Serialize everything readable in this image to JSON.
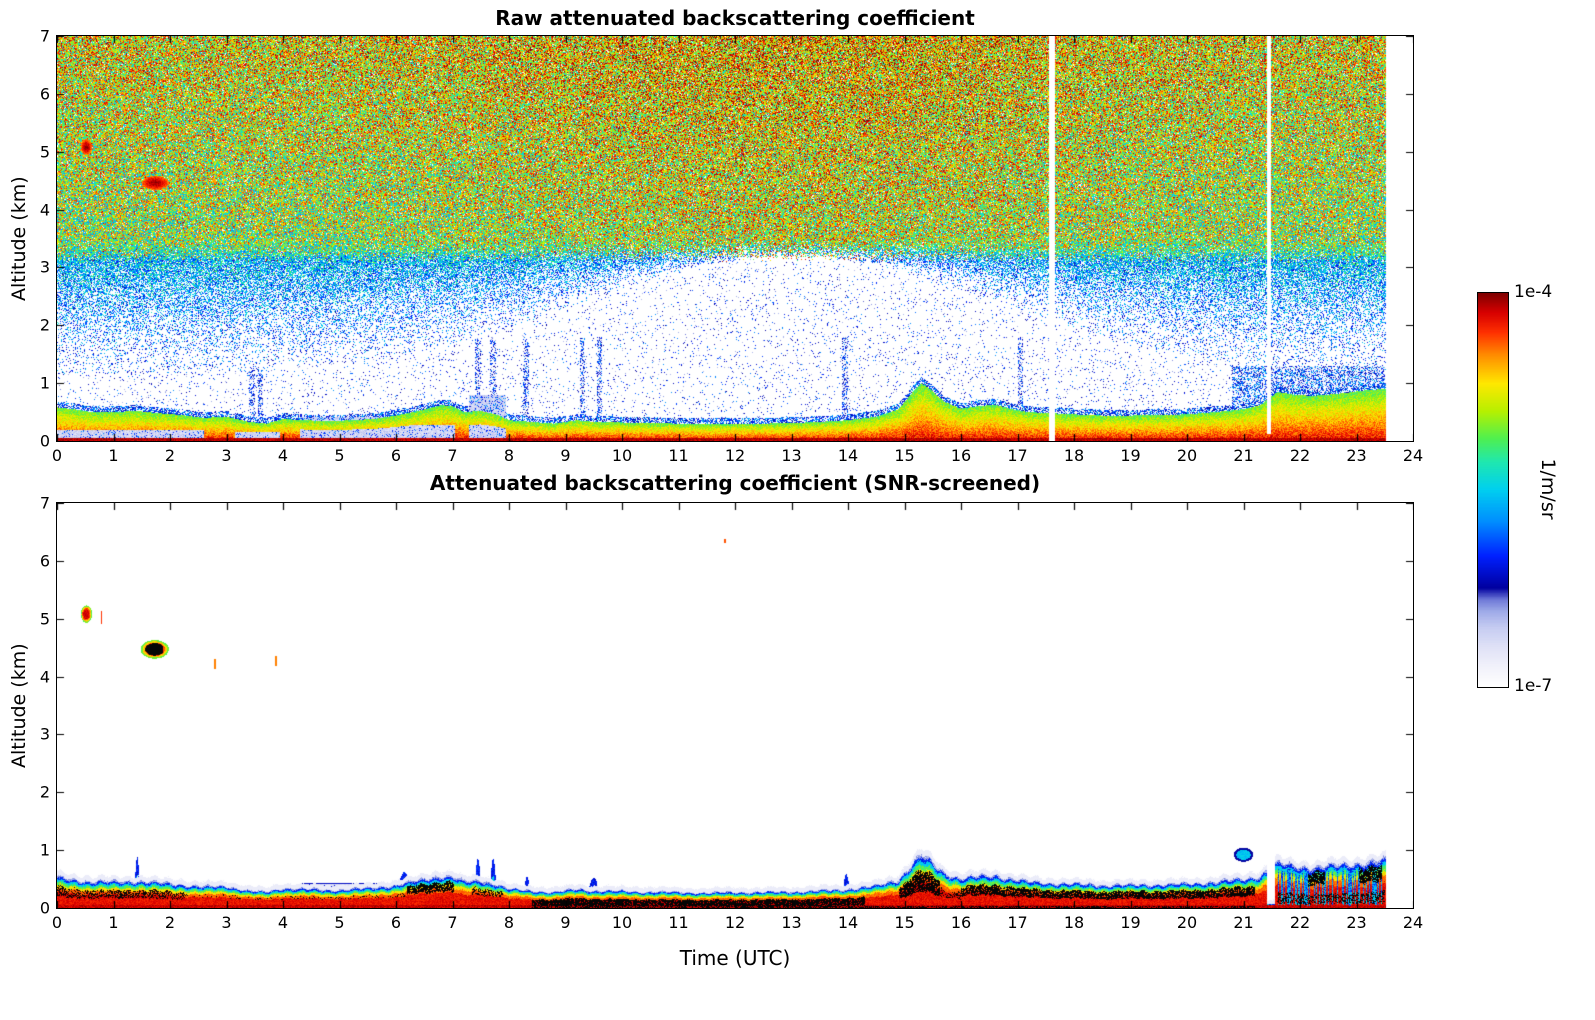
{
  "figure": {
    "background": "#ffffff"
  },
  "colorbar": {
    "top_label": "1e-4",
    "bottom_label": "1e-7",
    "unit": "1/m/sr"
  },
  "colormap": {
    "scale": "log",
    "vmin": "1e-7",
    "vmax": "1e-4",
    "stops": [
      [
        0.0,
        "#ffffff"
      ],
      [
        0.05,
        "#f2f2fb"
      ],
      [
        0.1,
        "#e0e2f7"
      ],
      [
        0.15,
        "#c6ccf2"
      ],
      [
        0.19,
        "#9fabe9"
      ],
      [
        0.22,
        "#6f79d8"
      ],
      [
        0.25,
        "#0000a0"
      ],
      [
        0.33,
        "#0020ff"
      ],
      [
        0.42,
        "#0090ff"
      ],
      [
        0.5,
        "#00d0f0"
      ],
      [
        0.57,
        "#20e8b0"
      ],
      [
        0.63,
        "#50f050"
      ],
      [
        0.7,
        "#b8f000"
      ],
      [
        0.77,
        "#ffe800"
      ],
      [
        0.84,
        "#ff9000"
      ],
      [
        0.9,
        "#ff3000"
      ],
      [
        0.95,
        "#d80000"
      ],
      [
        1.0,
        "#7f0000"
      ]
    ]
  },
  "chart_data": [
    {
      "type": "heatmap",
      "title": "Raw attenuated backscattering coefficient",
      "ylabel": "Altitude (km)",
      "xlim": [
        0,
        24
      ],
      "ylim": [
        0,
        7
      ],
      "x_ticks": [
        0,
        1,
        2,
        3,
        4,
        5,
        6,
        7,
        8,
        9,
        10,
        11,
        12,
        13,
        14,
        15,
        16,
        17,
        18,
        19,
        20,
        21,
        22,
        23,
        24
      ],
      "y_ticks": [
        0,
        1,
        2,
        3,
        4,
        5,
        6,
        7
      ],
      "data_end_utc": 23.5,
      "data_gaps_utc": [
        [
          17.56,
          17.66
        ],
        [
          21.42,
          21.49
        ]
      ],
      "boundary_layer_top_km": [
        [
          0,
          0.58
        ],
        [
          0.3,
          0.55
        ],
        [
          0.6,
          0.5
        ],
        [
          1,
          0.5
        ],
        [
          1.4,
          0.52
        ],
        [
          1.8,
          0.48
        ],
        [
          2.2,
          0.45
        ],
        [
          2.6,
          0.4
        ],
        [
          3,
          0.42
        ],
        [
          3.4,
          0.33
        ],
        [
          3.7,
          0.3
        ],
        [
          4,
          0.38
        ],
        [
          4.4,
          0.36
        ],
        [
          4.8,
          0.34
        ],
        [
          5.2,
          0.36
        ],
        [
          5.6,
          0.38
        ],
        [
          6,
          0.44
        ],
        [
          6.4,
          0.52
        ],
        [
          6.8,
          0.62
        ],
        [
          7,
          0.6
        ],
        [
          7.2,
          0.5
        ],
        [
          7.5,
          0.52
        ],
        [
          7.8,
          0.45
        ],
        [
          8,
          0.36
        ],
        [
          8.4,
          0.33
        ],
        [
          8.8,
          0.3
        ],
        [
          9.2,
          0.36
        ],
        [
          9.5,
          0.33
        ],
        [
          10,
          0.32
        ],
        [
          10.5,
          0.31
        ],
        [
          11,
          0.3
        ],
        [
          11.5,
          0.29
        ],
        [
          12,
          0.3
        ],
        [
          12.5,
          0.3
        ],
        [
          13,
          0.31
        ],
        [
          13.5,
          0.33
        ],
        [
          14,
          0.36
        ],
        [
          14.5,
          0.42
        ],
        [
          14.9,
          0.55
        ],
        [
          15.15,
          0.85
        ],
        [
          15.3,
          1.0
        ],
        [
          15.45,
          0.9
        ],
        [
          15.7,
          0.68
        ],
        [
          16,
          0.56
        ],
        [
          16.3,
          0.6
        ],
        [
          16.6,
          0.63
        ],
        [
          16.9,
          0.55
        ],
        [
          17.2,
          0.5
        ],
        [
          17.6,
          0.48
        ],
        [
          18,
          0.46
        ],
        [
          18.5,
          0.44
        ],
        [
          19,
          0.44
        ],
        [
          19.5,
          0.45
        ],
        [
          20,
          0.46
        ],
        [
          20.5,
          0.5
        ],
        [
          21,
          0.55
        ],
        [
          21.3,
          0.62
        ],
        [
          21.6,
          0.85
        ],
        [
          21.9,
          0.8
        ],
        [
          22.2,
          0.78
        ],
        [
          22.5,
          0.8
        ],
        [
          22.8,
          0.83
        ],
        [
          23.1,
          0.87
        ],
        [
          23.5,
          0.9
        ]
      ],
      "aerosol_patches": [
        [
          0,
          2.6,
          0.3
        ],
        [
          3.15,
          3.95,
          0.25
        ],
        [
          4.3,
          7.05,
          0.42
        ],
        [
          7.3,
          7.95,
          0.8
        ]
      ],
      "blue_streaks_utc": [
        3.45,
        3.6,
        7.45,
        7.72,
        8.3,
        9.3,
        9.6,
        13.95,
        17.05
      ],
      "clouds": [
        {
          "t": 0.52,
          "z": 5.08,
          "rx": 0.1,
          "rz": 0.14,
          "v": 0.84,
          "dv": 0.14
        },
        {
          "t": 1.74,
          "z": 4.46,
          "rx": 0.24,
          "rz": 0.12,
          "v": 0.85,
          "dv": 0.13
        },
        {
          "t": 2.78,
          "z": 4.5,
          "rx": 0.03,
          "rz": 0.05,
          "v": 0.78,
          "dv": 0.06
        },
        {
          "t": 3.88,
          "z": 4.3,
          "rx": 0.03,
          "rz": 0.06,
          "v": 0.8,
          "dv": 0.05
        }
      ]
    },
    {
      "type": "heatmap",
      "title": "Attenuated backscattering coefficient (SNR-screened)",
      "xlabel": "Time (UTC)",
      "ylabel": "Altitude (km)",
      "xlim": [
        0,
        24
      ],
      "ylim": [
        0,
        7
      ],
      "x_ticks": [
        0,
        1,
        2,
        3,
        4,
        5,
        6,
        7,
        8,
        9,
        10,
        11,
        12,
        13,
        14,
        15,
        16,
        17,
        18,
        19,
        20,
        21,
        22,
        23,
        24
      ],
      "y_ticks": [
        0,
        1,
        2,
        3,
        4,
        5,
        6,
        7
      ],
      "data_end_utc": 23.5,
      "data_gap_utc": [
        21.42,
        21.56
      ],
      "boundary_layer_top_km": [
        [
          0,
          0.58
        ],
        [
          0.3,
          0.55
        ],
        [
          0.6,
          0.5
        ],
        [
          1,
          0.5
        ],
        [
          1.4,
          0.52
        ],
        [
          1.8,
          0.48
        ],
        [
          2.2,
          0.45
        ],
        [
          2.6,
          0.4
        ],
        [
          3,
          0.42
        ],
        [
          3.4,
          0.33
        ],
        [
          3.7,
          0.3
        ],
        [
          4,
          0.38
        ],
        [
          4.4,
          0.36
        ],
        [
          4.8,
          0.34
        ],
        [
          5.2,
          0.36
        ],
        [
          5.6,
          0.38
        ],
        [
          6,
          0.44
        ],
        [
          6.4,
          0.52
        ],
        [
          6.8,
          0.62
        ],
        [
          7,
          0.6
        ],
        [
          7.2,
          0.5
        ],
        [
          7.5,
          0.52
        ],
        [
          7.8,
          0.45
        ],
        [
          8,
          0.36
        ],
        [
          8.4,
          0.33
        ],
        [
          8.8,
          0.3
        ],
        [
          9.2,
          0.36
        ],
        [
          9.5,
          0.33
        ],
        [
          10,
          0.32
        ],
        [
          10.5,
          0.31
        ],
        [
          11,
          0.3
        ],
        [
          11.5,
          0.29
        ],
        [
          12,
          0.3
        ],
        [
          12.5,
          0.3
        ],
        [
          13,
          0.31
        ],
        [
          13.5,
          0.33
        ],
        [
          14,
          0.36
        ],
        [
          14.5,
          0.42
        ],
        [
          14.9,
          0.55
        ],
        [
          15.15,
          0.85
        ],
        [
          15.3,
          1.0
        ],
        [
          15.45,
          0.9
        ],
        [
          15.7,
          0.68
        ],
        [
          16,
          0.56
        ],
        [
          16.3,
          0.6
        ],
        [
          16.6,
          0.63
        ],
        [
          16.9,
          0.55
        ],
        [
          17.2,
          0.5
        ],
        [
          17.6,
          0.48
        ],
        [
          18,
          0.46
        ],
        [
          18.5,
          0.44
        ],
        [
          19,
          0.44
        ],
        [
          19.5,
          0.45
        ],
        [
          20,
          0.46
        ],
        [
          20.5,
          0.5
        ],
        [
          21,
          0.55
        ],
        [
          21.3,
          0.62
        ],
        [
          21.6,
          0.85
        ],
        [
          21.9,
          0.8
        ],
        [
          22.2,
          0.78
        ],
        [
          22.5,
          0.8
        ],
        [
          22.8,
          0.83
        ],
        [
          23.1,
          0.87
        ],
        [
          23.5,
          0.9
        ]
      ],
      "saturated_black_intervals": [
        [
          0,
          2.3,
          0.35,
          0.65,
          0.5
        ],
        [
          2.3,
          6.2,
          0.45,
          0.6,
          0.15
        ],
        [
          6.2,
          7.02,
          0.5,
          0.78,
          0.8
        ],
        [
          7.35,
          7.9,
          0.45,
          0.7,
          0.5
        ],
        [
          8.4,
          14.3,
          0.12,
          0.5,
          0.85
        ],
        [
          14.9,
          15.62,
          0.3,
          0.68,
          0.8
        ],
        [
          15.62,
          16.0,
          0.3,
          0.5,
          0.4
        ],
        [
          16.0,
          21.2,
          0.38,
          0.68,
          0.8
        ],
        [
          21.6,
          23.5,
          0.1,
          0.32,
          0.45
        ],
        [
          22.15,
          22.45,
          0.55,
          0.85,
          0.85
        ],
        [
          23.05,
          23.45,
          0.55,
          0.85,
          0.85
        ]
      ],
      "aerosol_patches": [
        [
          0,
          2.6,
          0.3
        ],
        [
          3.15,
          3.95,
          0.28
        ],
        [
          4.3,
          7.05,
          0.44
        ]
      ],
      "blue_spikes": [
        [
          1.42,
          0.04,
          0.88
        ],
        [
          6.15,
          0.12,
          0.62
        ],
        [
          7.45,
          0.05,
          0.85
        ],
        [
          7.72,
          0.05,
          0.85
        ],
        [
          8.32,
          0.05,
          0.55
        ],
        [
          9.5,
          0.1,
          0.52
        ],
        [
          13.97,
          0.06,
          0.58
        ],
        [
          17.07,
          0.05,
          0.52
        ]
      ],
      "detached_layer": {
        "t": 21.0,
        "z": 0.92,
        "rx": 0.17,
        "rz": 0.12
      },
      "clouds": [
        {
          "t": 0.52,
          "z": 5.08,
          "rx": 0.1,
          "rz": 0.15
        },
        {
          "t": 1.73,
          "z": 4.47,
          "rx": 0.25,
          "rz": 0.16,
          "black_core": [
            1.56,
            1.88
          ]
        }
      ],
      "thin_cloud_marks": [
        [
          0.79,
          4.9,
          5.14,
          0.015,
          0.9
        ],
        [
          2.8,
          4.13,
          4.3,
          0.02,
          0.85
        ],
        [
          3.87,
          4.18,
          4.36,
          0.02,
          0.85
        ],
        [
          11.82,
          6.3,
          6.37,
          0.012,
          0.88
        ]
      ]
    }
  ]
}
